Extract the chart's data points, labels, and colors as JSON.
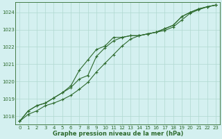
{
  "x": [
    0,
    1,
    2,
    3,
    4,
    5,
    6,
    7,
    8,
    9,
    10,
    11,
    12,
    13,
    14,
    15,
    16,
    17,
    18,
    19,
    20,
    21,
    22,
    23
  ],
  "line1": [
    1017.7,
    1018.3,
    1018.6,
    1018.75,
    1019.05,
    1019.35,
    1019.65,
    1020.15,
    1020.35,
    1021.45,
    1021.95,
    1022.35,
    1022.55,
    1022.65,
    1022.65,
    1022.75,
    1022.85,
    1023.05,
    1023.25,
    1023.75,
    1024.0,
    1024.2,
    1024.32,
    1024.42
  ],
  "line2": [
    1017.7,
    1018.3,
    1018.6,
    1018.75,
    1019.05,
    1019.35,
    1019.75,
    1020.65,
    1021.25,
    1021.85,
    1022.05,
    1022.55,
    1022.55,
    1022.65,
    1022.65,
    1022.75,
    1022.85,
    1023.05,
    1023.25,
    1023.75,
    1024.0,
    1024.2,
    1024.32,
    1024.42
  ],
  "line3": [
    1017.7,
    1018.1,
    1018.3,
    1018.6,
    1018.75,
    1018.95,
    1019.2,
    1019.55,
    1019.95,
    1020.55,
    1021.05,
    1021.55,
    1022.05,
    1022.45,
    1022.65,
    1022.75,
    1022.85,
    1022.95,
    1023.15,
    1023.55,
    1023.95,
    1024.15,
    1024.32,
    1024.42
  ],
  "line_color": "#2d6a2d",
  "bg_color": "#d4f0f0",
  "grid_color": "#b0d8d0",
  "text_color": "#2d6a2d",
  "xlabel": "Graphe pression niveau de la mer (hPa)",
  "ylim": [
    1017.5,
    1024.6
  ],
  "yticks": [
    1018,
    1019,
    1020,
    1021,
    1022,
    1023,
    1024
  ],
  "xticks": [
    0,
    1,
    2,
    3,
    4,
    5,
    6,
    7,
    8,
    9,
    10,
    11,
    12,
    13,
    14,
    15,
    16,
    17,
    18,
    19,
    20,
    21,
    22,
    23
  ],
  "marker": "+",
  "markersize": 3,
  "linewidth": 0.8,
  "tick_fontsize": 5.0,
  "xlabel_fontsize": 6.0
}
